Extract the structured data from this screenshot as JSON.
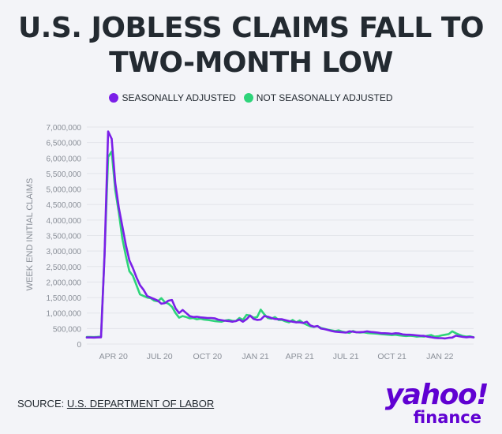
{
  "header": {
    "title_line1": "U.S. JOBLESS CLAIMS FALL TO",
    "title_line2": "TWO-MONTH LOW"
  },
  "source": {
    "prefix": "SOURCE: ",
    "link": "U.S. DEPARTMENT OF LABOR"
  },
  "logo": {
    "top": "yahoo!",
    "bottom": "finance"
  },
  "colors": {
    "seasonally_adjusted": "#7b1fe8",
    "not_seasonally_adjusted": "#2ed47a",
    "grid": "#e3e5ea",
    "axis_text": "#8a8f98"
  },
  "chart_data": {
    "type": "line",
    "ylabel": "WEEK END INITIAL CLAIMS",
    "xlabel": "",
    "ylim": [
      0,
      7000000
    ],
    "yticks": [
      0,
      500000,
      1000000,
      1500000,
      2000000,
      2500000,
      3000000,
      3500000,
      4000000,
      4500000,
      5000000,
      5500000,
      6000000,
      6500000,
      7000000
    ],
    "ytick_labels": [
      "0",
      "500,000",
      "1,000,000",
      "1,500,000",
      "2,000,000",
      "2,500,000",
      "3,000,000",
      "3,500,000",
      "4,000,000",
      "4,500,000",
      "5,000,000",
      "5,500,000",
      "6,000,000",
      "6,500,000",
      "7,000,000"
    ],
    "xlim": [
      0,
      109
    ],
    "xticks": [
      {
        "x": 7.5,
        "label": "APR 20"
      },
      {
        "x": 20.5,
        "label": "JUL 20"
      },
      {
        "x": 34,
        "label": "OCT 20"
      },
      {
        "x": 47.5,
        "label": "JAN 21"
      },
      {
        "x": 60,
        "label": "APR 21"
      },
      {
        "x": 73,
        "label": "JUL 21"
      },
      {
        "x": 86,
        "label": "OCT 21"
      },
      {
        "x": 99.5,
        "label": "JAN 22"
      }
    ],
    "legend_position": "top-center",
    "grid": true,
    "series": [
      {
        "name": "SEASONALLY ADJUSTED",
        "values": [
          211000,
          212000,
          210000,
          215000,
          220000,
          2900000,
          6860000,
          6620000,
          5200000,
          4400000,
          3800000,
          3200000,
          2700000,
          2450000,
          2150000,
          1900000,
          1750000,
          1550000,
          1500000,
          1450000,
          1400000,
          1300000,
          1320000,
          1400000,
          1420000,
          1150000,
          1000000,
          1100000,
          1000000,
          900000,
          870000,
          880000,
          860000,
          850000,
          840000,
          840000,
          830000,
          790000,
          770000,
          750000,
          740000,
          720000,
          740000,
          790000,
          720000,
          800000,
          920000,
          810000,
          780000,
          790000,
          900000,
          880000,
          840000,
          810000,
          800000,
          800000,
          770000,
          740000,
          720000,
          700000,
          700000,
          680000,
          720000,
          600000,
          560000,
          580000,
          500000,
          480000,
          450000,
          420000,
          400000,
          390000,
          380000,
          370000,
          410000,
          400000,
          380000,
          385000,
          390000,
          410000,
          390000,
          380000,
          370000,
          350000,
          350000,
          340000,
          330000,
          350000,
          340000,
          310000,
          300000,
          300000,
          290000,
          280000,
          270000,
          265000,
          240000,
          220000,
          200000,
          190000,
          190000,
          180000,
          200000,
          210000,
          270000,
          250000,
          230000,
          220000,
          230000,
          215000
        ]
      },
      {
        "name": "NOT SEASONALLY ADJUSTED",
        "values": [
          230000,
          228000,
          225000,
          232000,
          250000,
          2920000,
          6030000,
          6210000,
          4970000,
          4250000,
          3400000,
          2850000,
          2350000,
          2200000,
          1900000,
          1600000,
          1550000,
          1500000,
          1480000,
          1400000,
          1380000,
          1480000,
          1350000,
          1300000,
          1200000,
          1000000,
          850000,
          900000,
          870000,
          830000,
          840000,
          800000,
          820000,
          790000,
          780000,
          760000,
          740000,
          730000,
          720000,
          760000,
          780000,
          750000,
          740000,
          840000,
          780000,
          940000,
          920000,
          850000,
          870000,
          1110000,
          960000,
          840000,
          820000,
          870000,
          780000,
          780000,
          730000,
          700000,
          780000,
          700000,
          760000,
          680000,
          620000,
          570000,
          550000,
          580000,
          520000,
          490000,
          460000,
          440000,
          420000,
          440000,
          400000,
          380000,
          360000,
          420000,
          380000,
          370000,
          380000,
          360000,
          350000,
          340000,
          330000,
          320000,
          310000,
          300000,
          290000,
          300000,
          280000,
          270000,
          260000,
          270000,
          260000,
          240000,
          250000,
          240000,
          270000,
          290000,
          240000,
          250000,
          280000,
          300000,
          320000,
          410000,
          350000,
          300000,
          260000,
          240000,
          250000,
          220000
        ]
      }
    ]
  }
}
